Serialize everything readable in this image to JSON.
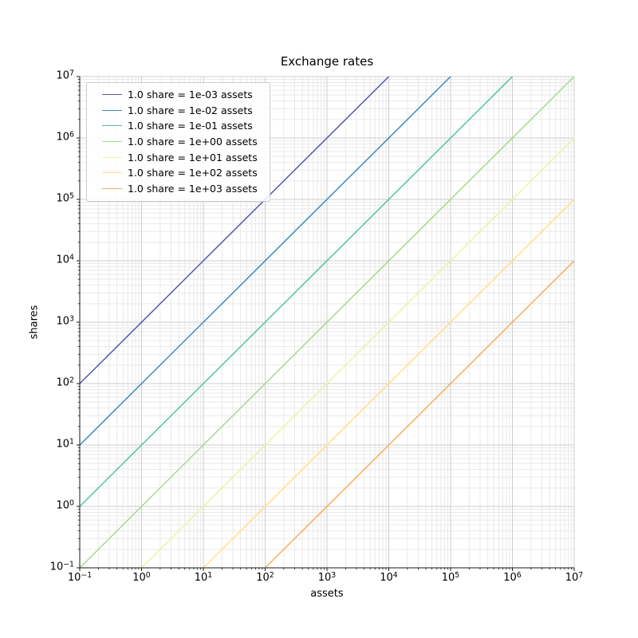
{
  "title": "Exchange rates",
  "axes": {
    "xlabel": "assets",
    "ylabel": "shares"
  },
  "chart_data": {
    "type": "line",
    "title": "Exchange rates",
    "xlabel": "assets",
    "ylabel": "shares",
    "xscale": "log",
    "yscale": "log",
    "xlim": [
      0.1,
      10000000.0
    ],
    "ylim": [
      0.1,
      10000000.0
    ],
    "x_tick_exponents": [
      -1,
      0,
      1,
      2,
      3,
      4,
      5,
      6,
      7
    ],
    "y_tick_exponents": [
      -1,
      0,
      1,
      2,
      3,
      4,
      5,
      6,
      7
    ],
    "grid": "both",
    "grid_major_color": "#cdcdcd",
    "grid_minor_color": "#e9e9e9",
    "spine_color": "#1a1a1a",
    "legend_position": "upper left",
    "series": [
      {
        "label": "1.0 share = 1e-03 assets",
        "assets_per_share": 0.001,
        "color": "#5457b5",
        "line": {
          "x": [
            0.1,
            10000.0
          ],
          "y": [
            100.0,
            10000000.0
          ]
        }
      },
      {
        "label": "1.0 share = 1e-02 assets",
        "assets_per_share": 0.01,
        "color": "#3b8bc2",
        "line": {
          "x": [
            0.1,
            100000.0
          ],
          "y": [
            10.0,
            10000000.0
          ]
        }
      },
      {
        "label": "1.0 share = 1e-01 assets",
        "assets_per_share": 0.1,
        "color": "#54c3a3",
        "line": {
          "x": [
            0.1,
            1000000.0
          ],
          "y": [
            1.0,
            10000000.0
          ]
        }
      },
      {
        "label": "1.0 share = 1e+00 assets",
        "assets_per_share": 1.0,
        "color": "#a6da8c",
        "line": {
          "x": [
            0.1,
            10000000.0
          ],
          "y": [
            0.1,
            10000000.0
          ]
        }
      },
      {
        "label": "1.0 share = 1e+01 assets",
        "assets_per_share": 10.0,
        "color": "#f0f3a0",
        "line": {
          "x": [
            1.0,
            10000000.0
          ],
          "y": [
            0.1,
            1000000.0
          ]
        }
      },
      {
        "label": "1.0 share = 1e+02 assets",
        "assets_per_share": 100.0,
        "color": "#ffe089",
        "line": {
          "x": [
            10.0,
            10000000.0
          ],
          "y": [
            0.1,
            100000.0
          ]
        }
      },
      {
        "label": "1.0 share = 1e+03 assets",
        "assets_per_share": 1000.0,
        "color": "#fdab5f",
        "line": {
          "x": [
            100.0,
            10000000.0
          ],
          "y": [
            0.1,
            10000.0
          ]
        }
      }
    ]
  }
}
